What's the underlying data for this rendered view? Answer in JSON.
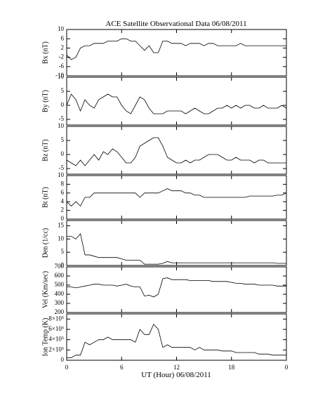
{
  "chart_data": [
    {
      "type": "line",
      "title": "ACE Satellite Observational Data   06/08/2011",
      "ylabel": "Bx (nT)",
      "color": "#000000",
      "x": [
        0,
        0.5,
        1,
        1.5,
        2,
        2.5,
        3,
        3.5,
        4,
        4.5,
        5,
        5.5,
        6,
        6.5,
        7,
        7.5,
        8,
        8.5,
        9,
        9.5,
        10,
        10.5,
        11,
        11.5,
        12,
        12.5,
        13,
        13.5,
        14,
        14.5,
        15,
        15.5,
        16,
        16.5,
        17,
        17.5,
        18,
        18.5,
        19,
        19.5,
        20,
        20.5,
        21,
        21.5,
        22,
        22.5,
        23,
        23.5,
        24
      ],
      "values": [
        -1,
        -3,
        -2,
        2,
        3,
        3,
        4,
        4,
        4,
        5,
        5,
        5,
        6,
        6,
        5,
        5,
        3,
        1,
        3,
        0,
        0,
        5,
        5,
        4,
        4,
        4,
        3,
        4,
        4,
        4,
        3,
        4,
        4,
        3,
        3,
        3,
        3,
        3,
        4,
        3,
        3,
        3,
        3,
        3,
        3,
        3,
        3,
        3,
        3
      ],
      "xlim": [
        0,
        24
      ],
      "xticks": [
        0,
        6,
        12,
        18,
        {
          "value": 24,
          "label": "0"
        }
      ],
      "ylim": [
        -10,
        10
      ],
      "yticks": [
        -10,
        -6,
        -2,
        2,
        6,
        10
      ]
    },
    {
      "type": "line",
      "ylabel": "By (nT)",
      "color": "#000000",
      "x": [
        0,
        0.5,
        1,
        1.5,
        2,
        2.5,
        3,
        3.5,
        4,
        4.5,
        5,
        5.5,
        6,
        6.5,
        7,
        7.5,
        8,
        8.5,
        9,
        9.5,
        10,
        10.5,
        11,
        11.5,
        12,
        12.5,
        13,
        13.5,
        14,
        14.5,
        15,
        15.5,
        16,
        16.5,
        17,
        17.5,
        18,
        18.5,
        19,
        19.5,
        20,
        20.5,
        21,
        21.5,
        22,
        22.5,
        23,
        23.5,
        24
      ],
      "values": [
        0,
        4,
        2,
        -2,
        2,
        0,
        -1,
        2,
        3,
        4,
        3,
        3,
        0,
        -2,
        -3,
        0,
        3,
        2,
        -1,
        -3,
        -3,
        -3,
        -2,
        -2,
        -2,
        -2,
        -3,
        -2,
        -1,
        -2,
        -3,
        -3,
        -2,
        -1,
        -1,
        0,
        -1,
        0,
        -1,
        0,
        0,
        -1,
        -1,
        0,
        -1,
        -1,
        -1,
        0,
        -1
      ],
      "xlim": [
        0,
        24
      ],
      "xticks": [
        0,
        6,
        12,
        18,
        {
          "value": 24,
          "label": "0"
        }
      ],
      "ylim": [
        -7,
        10
      ],
      "yticks": [
        -5,
        0,
        5,
        10
      ]
    },
    {
      "type": "line",
      "ylabel": "Bz (nT)",
      "color": "#000000",
      "x": [
        0,
        0.5,
        1,
        1.5,
        2,
        2.5,
        3,
        3.5,
        4,
        4.5,
        5,
        5.5,
        6,
        6.5,
        7,
        7.5,
        8,
        8.5,
        9,
        9.5,
        10,
        10.5,
        11,
        11.5,
        12,
        12.5,
        13,
        13.5,
        14,
        14.5,
        15,
        15.5,
        16,
        16.5,
        17,
        17.5,
        18,
        18.5,
        19,
        19.5,
        20,
        20.5,
        21,
        21.5,
        22,
        22.5,
        23,
        23.5,
        24
      ],
      "values": [
        -2,
        -3,
        -4,
        -2,
        -4,
        -2,
        0,
        -2,
        1,
        0,
        2,
        1,
        -1,
        -3,
        -3,
        -1,
        3,
        4,
        5,
        6,
        6,
        3,
        -1,
        -2,
        -3,
        -3,
        -2,
        -3,
        -2,
        -2,
        -1,
        0,
        0,
        0,
        -1,
        -2,
        -2,
        -1,
        -2,
        -2,
        -2,
        -3,
        -2,
        -2,
        -3,
        -3,
        -3,
        -3,
        -3
      ],
      "xlim": [
        0,
        24
      ],
      "xticks": [
        0,
        6,
        12,
        18,
        {
          "value": 24,
          "label": "0"
        }
      ],
      "ylim": [
        -7,
        10
      ],
      "yticks": [
        -5,
        0,
        5,
        10
      ]
    },
    {
      "type": "line",
      "ylabel": "Bt (nT)",
      "color": "#000000",
      "x": [
        0,
        0.5,
        1,
        1.5,
        2,
        2.5,
        3,
        3.5,
        4,
        4.5,
        5,
        5.5,
        6,
        6.5,
        7,
        7.5,
        8,
        8.5,
        9,
        9.5,
        10,
        10.5,
        11,
        11.5,
        12,
        12.5,
        13,
        13.5,
        14,
        14.5,
        15,
        15.5,
        16,
        16.5,
        17,
        17.5,
        18,
        18.5,
        19,
        19.5,
        20,
        20.5,
        21,
        21.5,
        22,
        22.5,
        23,
        23.5,
        24
      ],
      "values": [
        4,
        3,
        4,
        3,
        5,
        5,
        6,
        6,
        6,
        6,
        6,
        6,
        6,
        6,
        6,
        6,
        5,
        6,
        6,
        6,
        6,
        6.5,
        7,
        6.5,
        6.5,
        6.5,
        6,
        6,
        5.5,
        5.5,
        5,
        5,
        5,
        5,
        5,
        5,
        5,
        5,
        5,
        5,
        5.3,
        5.3,
        5.3,
        5.3,
        5.3,
        5.3,
        5.5,
        5.5,
        6
      ],
      "xlim": [
        0,
        24
      ],
      "xticks": [
        0,
        6,
        12,
        18,
        {
          "value": 24,
          "label": "0"
        }
      ],
      "ylim": [
        0,
        10
      ],
      "yticks": [
        0,
        2,
        4,
        6,
        8,
        10
      ]
    },
    {
      "type": "line",
      "ylabel": "Den (1/cc)",
      "color": "#000000",
      "x": [
        0,
        0.5,
        1,
        1.5,
        2,
        2.5,
        3,
        3.5,
        4,
        4.5,
        5,
        5.5,
        6,
        6.5,
        7,
        7.5,
        8,
        8.5,
        9,
        9.5,
        10,
        10.5,
        11,
        11.5,
        12,
        12.5,
        13,
        13.5,
        14,
        14.5,
        15,
        15.5,
        16,
        16.5,
        17,
        17.5,
        18,
        18.5,
        19,
        19.5,
        20,
        20.5,
        21,
        21.5,
        22,
        22.5,
        23,
        23.5,
        24
      ],
      "values": [
        11,
        11,
        10,
        12,
        4,
        4,
        3.5,
        3,
        3,
        3,
        3,
        3,
        2.5,
        2,
        2,
        2,
        2,
        0.5,
        0.5,
        0.5,
        0.5,
        0.8,
        1.5,
        1,
        1,
        1,
        1,
        1,
        1,
        1,
        1,
        1,
        1,
        1,
        1,
        1,
        1,
        1,
        1,
        1,
        1,
        1,
        1,
        1,
        1,
        1,
        0.8,
        0.8,
        0.8
      ],
      "xlim": [
        0,
        24
      ],
      "xticks": [
        0,
        6,
        12,
        18,
        {
          "value": 24,
          "label": "0"
        }
      ],
      "ylim": [
        0,
        17
      ],
      "yticks": [
        0,
        5,
        10,
        15
      ]
    },
    {
      "type": "line",
      "ylabel": "Vel (Km/sec)",
      "color": "#000000",
      "x": [
        0,
        0.5,
        1,
        1.5,
        2,
        2.5,
        3,
        3.5,
        4,
        4.5,
        5,
        5.5,
        6,
        6.5,
        7,
        7.5,
        8,
        8.5,
        9,
        9.5,
        10,
        10.5,
        11,
        11.5,
        12,
        12.5,
        13,
        13.5,
        14,
        14.5,
        15,
        15.5,
        16,
        16.5,
        17,
        17.5,
        18,
        18.5,
        19,
        19.5,
        20,
        20.5,
        21,
        21.5,
        22,
        22.5,
        23,
        23.5,
        24
      ],
      "values": [
        480,
        480,
        470,
        480,
        490,
        500,
        510,
        510,
        500,
        500,
        500,
        490,
        500,
        510,
        490,
        480,
        480,
        380,
        390,
        370,
        400,
        570,
        580,
        560,
        560,
        560,
        560,
        550,
        550,
        550,
        550,
        550,
        540,
        540,
        540,
        540,
        530,
        520,
        520,
        510,
        510,
        510,
        500,
        500,
        500,
        500,
        490,
        490,
        490
      ],
      "xlim": [
        0,
        24
      ],
      "xticks": [
        0,
        6,
        12,
        18,
        {
          "value": 24,
          "label": "0"
        }
      ],
      "ylim": [
        200,
        700
      ],
      "yticks": [
        200,
        300,
        400,
        500,
        600,
        700
      ]
    },
    {
      "type": "line",
      "ylabel": "Ion Temp (K)",
      "xlabel": "UT (Hour)   06/08/2011",
      "color": "#000000",
      "x": [
        0,
        0.5,
        1,
        1.5,
        2,
        2.5,
        3,
        3.5,
        4,
        4.5,
        5,
        5.5,
        6,
        6.5,
        7,
        7.5,
        8,
        8.5,
        9,
        9.5,
        10,
        10.5,
        11,
        11.5,
        12,
        12.5,
        13,
        13.5,
        14,
        14.5,
        15,
        15.5,
        16,
        16.5,
        17,
        17.5,
        18,
        18.5,
        19,
        19.5,
        20,
        20.5,
        21,
        21.5,
        22,
        22.5,
        23,
        23.5,
        24
      ],
      "values": [
        50000,
        50000,
        100000,
        100000,
        350000,
        300000,
        350000,
        400000,
        400000,
        450000,
        400000,
        400000,
        400000,
        400000,
        400000,
        350000,
        600000,
        500000,
        500000,
        700000,
        600000,
        250000,
        300000,
        250000,
        250000,
        250000,
        250000,
        250000,
        200000,
        250000,
        200000,
        200000,
        200000,
        200000,
        180000,
        180000,
        180000,
        150000,
        150000,
        150000,
        150000,
        150000,
        120000,
        120000,
        120000,
        100000,
        100000,
        100000,
        100000
      ],
      "xlim": [
        0,
        24
      ],
      "xticks": [
        0,
        6,
        12,
        18,
        {
          "value": 24,
          "label": "0"
        }
      ],
      "ylim": [
        0,
        900000
      ],
      "yticks": [
        0,
        {
          "value": 200000,
          "label": "2×10⁵"
        },
        {
          "value": 400000,
          "label": "4×10⁵"
        },
        {
          "value": 600000,
          "label": "6×10⁵"
        },
        {
          "value": 800000,
          "label": "8×10⁵"
        }
      ]
    }
  ]
}
